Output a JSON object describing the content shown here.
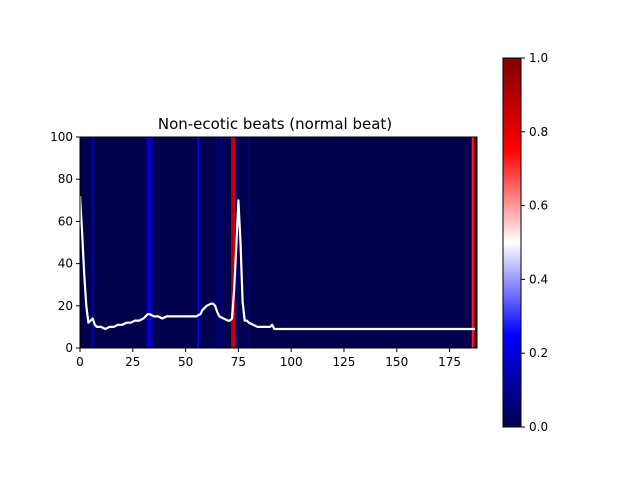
{
  "chart_data": {
    "type": "heatmap",
    "title": "Non-ecotic beats (normal beat)",
    "xlabel": "",
    "ylabel": "",
    "xlim": [
      0,
      188
    ],
    "ylim": [
      0,
      100
    ],
    "x_ticks": [
      0,
      25,
      50,
      75,
      100,
      125,
      150,
      175
    ],
    "y_ticks": [
      0,
      20,
      40,
      60,
      80,
      100
    ],
    "colormap": "seismic",
    "colorbar": {
      "range": [
        0.0,
        1.0
      ],
      "ticks": [
        "0.0",
        "0.2",
        "0.4",
        "0.6",
        "0.8",
        "1.0"
      ]
    },
    "attribution_stripes": [
      {
        "x": 6,
        "value": 0.13
      },
      {
        "x": 32,
        "value": 0.18
      },
      {
        "x": 33,
        "value": 0.22
      },
      {
        "x": 34,
        "value": 0.12
      },
      {
        "x": 56,
        "value": 0.25
      },
      {
        "x": 65,
        "value": 0.07
      },
      {
        "x": 67,
        "value": 0.09
      },
      {
        "x": 72,
        "value": 0.9
      },
      {
        "x": 73,
        "value": 0.82
      },
      {
        "x": 74,
        "value": 0.08
      },
      {
        "x": 80,
        "value": 0.06
      },
      {
        "x": 186,
        "value": 0.72
      },
      {
        "x": 187,
        "value": 0.95
      }
    ],
    "signal": {
      "color": "#ffffff",
      "x": [
        0,
        1,
        2,
        3,
        4,
        5,
        6,
        7,
        8,
        10,
        12,
        14,
        16,
        18,
        20,
        22,
        24,
        26,
        28,
        30,
        31,
        32,
        33,
        35,
        37,
        39,
        41,
        43,
        45,
        47,
        49,
        51,
        53,
        55,
        57,
        58,
        60,
        62,
        63,
        64,
        65,
        66,
        68,
        70,
        71,
        72,
        73,
        74,
        75,
        76,
        77,
        78,
        79,
        80,
        82,
        84,
        86,
        88,
        90,
        91,
        92,
        95,
        100,
        125,
        150,
        175,
        187
      ],
      "y": [
        72,
        55,
        35,
        20,
        12,
        13,
        14,
        11,
        10,
        10,
        9,
        10,
        10,
        11,
        11,
        12,
        12,
        13,
        13,
        14,
        15,
        16,
        16,
        15,
        15,
        14,
        15,
        15,
        15,
        15,
        15,
        15,
        15,
        15,
        16,
        18,
        20,
        21,
        21,
        20,
        17,
        15,
        14,
        13,
        13,
        14,
        28,
        48,
        70,
        50,
        22,
        13,
        13,
        12,
        11,
        10,
        10,
        10,
        10,
        11,
        9,
        9,
        9,
        9,
        9,
        9,
        9
      ]
    }
  }
}
